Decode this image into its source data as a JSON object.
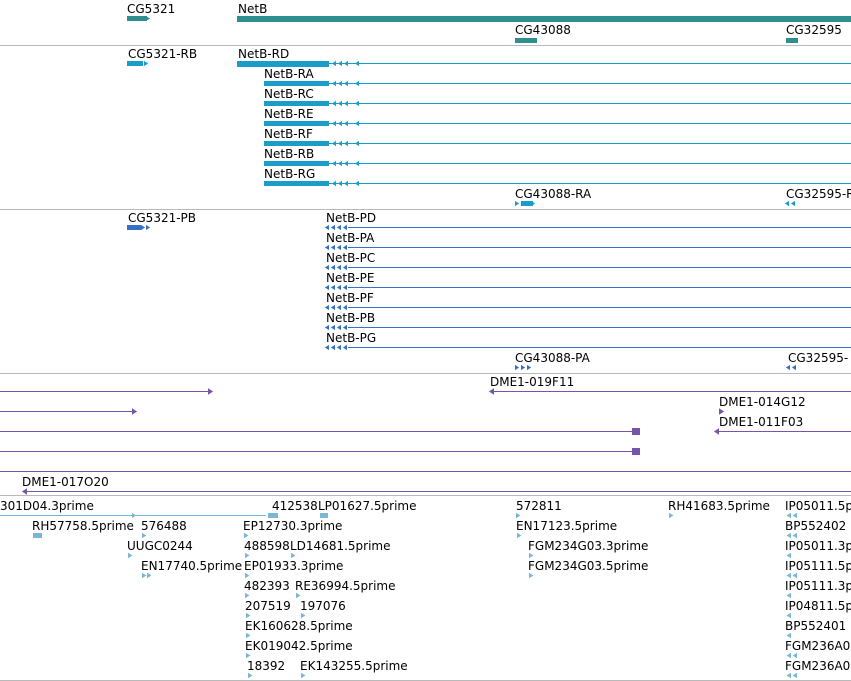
{
  "colors": {
    "gene": "#2f8f8f",
    "mrna": "#1a9ec9",
    "protein": "#3571c9",
    "clone": "#7556a8",
    "est": "#7bb6d9",
    "divider": "#b9b9b9"
  },
  "tracks": {
    "genes": {
      "features": [
        {
          "id": "gene-cg5321",
          "label": "CG5321"
        },
        {
          "id": "gene-netb",
          "label": "NetB"
        },
        {
          "id": "gene-cg43088",
          "label": "CG43088"
        },
        {
          "id": "gene-cg32595",
          "label": "CG32595"
        }
      ]
    },
    "transcripts": {
      "features": [
        {
          "id": "tx-cg5321-rb",
          "label": "CG5321-RB"
        },
        {
          "id": "tx-netb-rd",
          "label": "NetB-RD"
        },
        {
          "id": "tx-netb-ra",
          "label": "NetB-RA"
        },
        {
          "id": "tx-netb-rc",
          "label": "NetB-RC"
        },
        {
          "id": "tx-netb-re",
          "label": "NetB-RE"
        },
        {
          "id": "tx-netb-rf",
          "label": "NetB-RF"
        },
        {
          "id": "tx-netb-rb",
          "label": "NetB-RB"
        },
        {
          "id": "tx-netb-rg",
          "label": "NetB-RG"
        },
        {
          "id": "tx-cg43088-ra",
          "label": "CG43088-RA"
        },
        {
          "id": "tx-cg32595-r",
          "label": "CG32595-R"
        }
      ]
    },
    "proteins": {
      "features": [
        {
          "id": "pr-cg5321-pb",
          "label": "CG5321-PB"
        },
        {
          "id": "pr-netb-pd",
          "label": "NetB-PD"
        },
        {
          "id": "pr-netb-pa",
          "label": "NetB-PA"
        },
        {
          "id": "pr-netb-pc",
          "label": "NetB-PC"
        },
        {
          "id": "pr-netb-pe",
          "label": "NetB-PE"
        },
        {
          "id": "pr-netb-pf",
          "label": "NetB-PF"
        },
        {
          "id": "pr-netb-pb",
          "label": "NetB-PB"
        },
        {
          "id": "pr-netb-pg",
          "label": "NetB-PG"
        },
        {
          "id": "pr-cg43088-pa",
          "label": "CG43088-PA"
        },
        {
          "id": "pr-cg32595",
          "label": "CG32595-"
        }
      ]
    },
    "clones": {
      "features": [
        {
          "id": "cl-019f11",
          "label": "DME1-019F11"
        },
        {
          "id": "cl-014g12",
          "label": "DME1-014G12"
        },
        {
          "id": "cl-011f03",
          "label": "DME1-011F03"
        },
        {
          "id": "cl-017o20",
          "label": "DME1-017O20"
        }
      ]
    },
    "ests": {
      "features": [
        {
          "id": "est-301d04",
          "label": "301D04.3prime"
        },
        {
          "id": "est-412538",
          "label": "412538"
        },
        {
          "id": "est-lp01627",
          "label": "LP01627.5prime"
        },
        {
          "id": "est-572811",
          "label": "572811"
        },
        {
          "id": "est-rh41683",
          "label": "RH41683.5prime"
        },
        {
          "id": "est-ip05011-5",
          "label": "IP05011.5p"
        },
        {
          "id": "est-rh57758",
          "label": "RH57758.5prime"
        },
        {
          "id": "est-576488",
          "label": "576488"
        },
        {
          "id": "est-ep12730",
          "label": "EP12730.3prime"
        },
        {
          "id": "est-en17123",
          "label": "EN17123.5prime"
        },
        {
          "id": "est-bp552402",
          "label": "BP552402"
        },
        {
          "id": "est-uugc0244",
          "label": "UUGC0244"
        },
        {
          "id": "est-488598",
          "label": "488598"
        },
        {
          "id": "est-ld14681",
          "label": "LD14681.5prime"
        },
        {
          "id": "est-fgm234g03-3",
          "label": "FGM234G03.3prime"
        },
        {
          "id": "est-ip05011-3",
          "label": "IP05011.3p"
        },
        {
          "id": "est-en17740",
          "label": "EN17740.5prime"
        },
        {
          "id": "est-ep01933",
          "label": "EP01933.3prime"
        },
        {
          "id": "est-fgm234g03-5",
          "label": "FGM234G03.5prime"
        },
        {
          "id": "est-ip05111-5",
          "label": "IP05111.5p"
        },
        {
          "id": "est-482393",
          "label": "482393"
        },
        {
          "id": "est-re36994",
          "label": "RE36994.5prime"
        },
        {
          "id": "est-ip05111-3",
          "label": "IP05111.3p"
        },
        {
          "id": "est-207519",
          "label": "207519"
        },
        {
          "id": "est-197076",
          "label": "197076"
        },
        {
          "id": "est-ip04811",
          "label": "IP04811.5p"
        },
        {
          "id": "est-ek160628",
          "label": "EK160628.5prime"
        },
        {
          "id": "est-bp552401",
          "label": "BP552401"
        },
        {
          "id": "est-ek019042",
          "label": "EK019042.5prime"
        },
        {
          "id": "est-fgm236a0-a",
          "label": "FGM236A0"
        },
        {
          "id": "est-18392",
          "label": "18392"
        },
        {
          "id": "est-ek143255",
          "label": "EK143255.5prime"
        },
        {
          "id": "est-fgm236a0-b",
          "label": "FGM236A0"
        }
      ]
    }
  }
}
